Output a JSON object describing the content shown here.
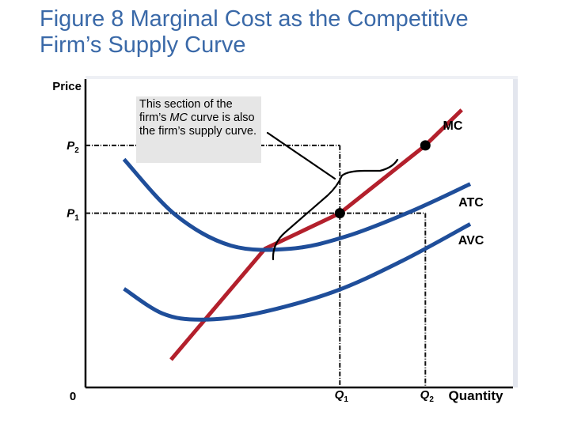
{
  "title": {
    "line1": "Figure 8 Marginal Cost as the Competitive",
    "line2": "Firm’s Supply Curve"
  },
  "callout": {
    "text_part1": "This section of the firm’s ",
    "text_italic": "MC",
    "text_part2": " curve is also the firm’s supply curve."
  },
  "colors": {
    "title": "#3a69a8",
    "mc_curve": "#b3202c",
    "cost_curves": "#1f4e9a",
    "callout_background": "#e6e6e6",
    "axes": "#000000"
  },
  "chart_data": {
    "type": "line",
    "title": "",
    "ylabel": "Price",
    "xlabel": "Quantity",
    "origin_label": "0",
    "xlim": [
      0,
      100
    ],
    "ylim": [
      0,
      100
    ],
    "grid": false,
    "y_ticks": [
      {
        "name": "P",
        "sub": "2",
        "value": 78.5
      },
      {
        "name": "P",
        "sub": "1",
        "value": 56.5
      }
    ],
    "x_ticks": [
      {
        "name": "Q",
        "sub": "1",
        "value": 59.5
      },
      {
        "name": "Q",
        "sub": "2",
        "value": 79.5
      }
    ],
    "series": [
      {
        "name": "MC",
        "points": [
          [
            20,
            9
          ],
          [
            42,
            45
          ],
          [
            59.5,
            56.5
          ],
          [
            79.5,
            78.5
          ],
          [
            88,
            90
          ]
        ]
      },
      {
        "name": "ATC",
        "points": [
          [
            9,
            74
          ],
          [
            21,
            56
          ],
          [
            34,
            46
          ],
          [
            48,
            45
          ],
          [
            61,
            49
          ],
          [
            76,
            57
          ],
          [
            90,
            66
          ]
        ]
      },
      {
        "name": "AVC",
        "points": [
          [
            9,
            32
          ],
          [
            18,
            24
          ],
          [
            27,
            22
          ],
          [
            40,
            24
          ],
          [
            58,
            31
          ],
          [
            74,
            41
          ],
          [
            90,
            53
          ]
        ]
      }
    ],
    "points": [
      {
        "label": "P1,Q1",
        "x": 59.5,
        "y": 56.5
      },
      {
        "label": "P2,Q2",
        "x": 79.5,
        "y": 78.5
      }
    ]
  }
}
